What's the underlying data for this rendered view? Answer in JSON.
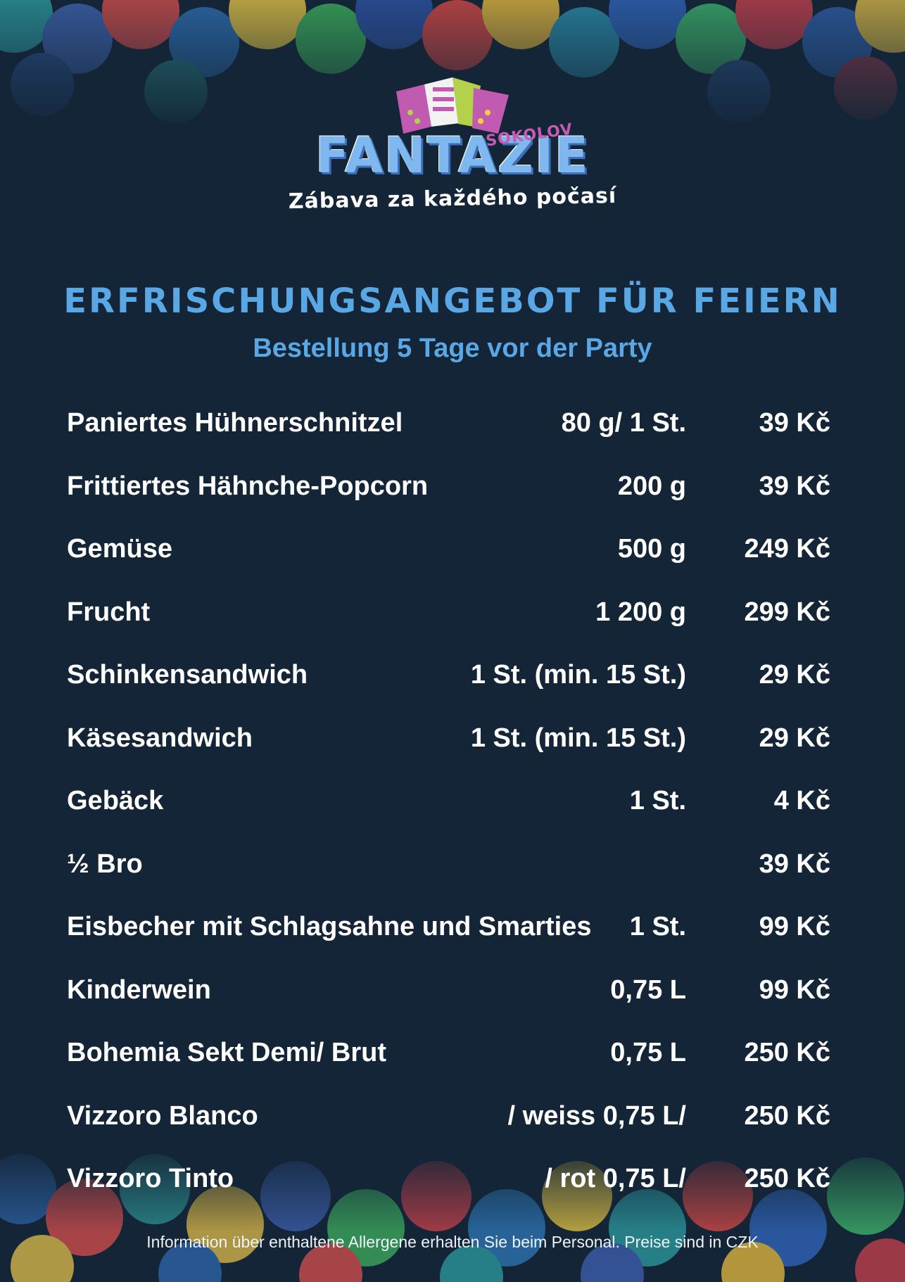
{
  "colors": {
    "background": "#132536",
    "accent": "#5aa7e6",
    "text": "#ffffff"
  },
  "logo": {
    "brand": "FANTAZIE",
    "location": "SOKOLOV",
    "tagline": "Zábava za každého počasí"
  },
  "header": {
    "title": "ERFRISCHUNGSANGEBOT FÜR FEIERN",
    "subtitle": "Bestellung 5 Tage vor der Party"
  },
  "menu": {
    "items": [
      {
        "name": "Paniertes Hühnerschnitzel",
        "quantity": "80 g/ 1 St.",
        "price": "39 Kč"
      },
      {
        "name": "Frittiertes Hähnche-Popcorn",
        "quantity": "200 g",
        "price": "39 Kč"
      },
      {
        "name": "Gemüse",
        "quantity": "500 g",
        "price": "249 Kč"
      },
      {
        "name": "Frucht",
        "quantity": "1 200 g",
        "price": "299 Kč"
      },
      {
        "name": "Schinkensandwich",
        "quantity": "1 St. (min. 15 St.)",
        "price": "29 Kč"
      },
      {
        "name": "Käsesandwich",
        "quantity": "1 St. (min. 15 St.)",
        "price": "29 Kč"
      },
      {
        "name": "Gebäck",
        "quantity": "1 St.",
        "price": "4 Kč"
      },
      {
        "name": "½ Bro",
        "quantity": "",
        "price": "39 Kč"
      },
      {
        "name": "Eisbecher mit Schlagsahne und Smarties",
        "quantity": "1 St.",
        "price": "99 Kč"
      },
      {
        "name": "Kinderwein",
        "quantity": "0,75 L",
        "price": "99 Kč"
      },
      {
        "name": "Bohemia Sekt Demi/ Brut",
        "quantity": "0,75 L",
        "price": "250 Kč"
      },
      {
        "name": "Vizzoro Blanco",
        "quantity": "/ weiss 0,75 L/",
        "price": "250 Kč"
      },
      {
        "name": "Vizzoro Tinto",
        "quantity": "/ rot 0,75 L/",
        "price": "250 Kč"
      }
    ]
  },
  "footer": {
    "note": "Information über enthaltene Allergene erhalten Sie beim Personal. Preise sind in CZK"
  }
}
